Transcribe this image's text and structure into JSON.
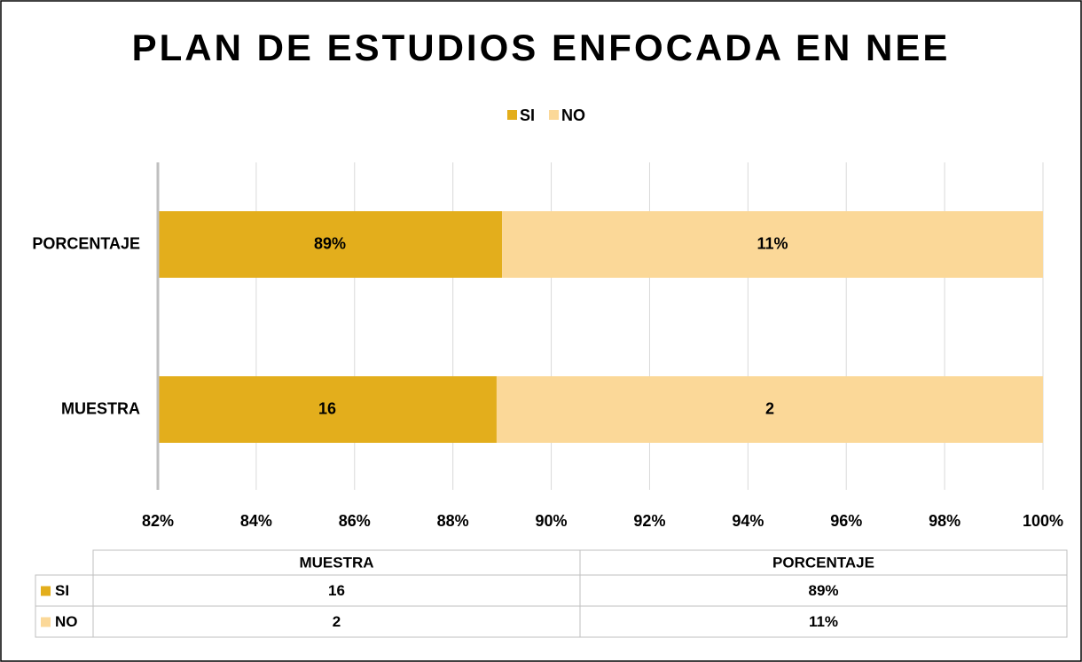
{
  "chart_data": {
    "type": "bar",
    "orientation": "horizontal",
    "stacking": "percent",
    "title": "PLAN DE ESTUDIOS ENFOCADA EN NEE",
    "categories": [
      "MUESTRA",
      "PORCENTAJE"
    ],
    "series": [
      {
        "name": "SI",
        "color": "#e3ae1c",
        "values": [
          16,
          89
        ],
        "value_labels": [
          "16",
          "89%"
        ]
      },
      {
        "name": "NO",
        "color": "#fbd898",
        "values": [
          2,
          11
        ],
        "value_labels": [
          "2",
          "11%"
        ]
      }
    ],
    "xlim": [
      82,
      100
    ],
    "xticks": [
      {
        "value": 82,
        "label": "82%"
      },
      {
        "value": 84,
        "label": "84%"
      },
      {
        "value": 86,
        "label": "86%"
      },
      {
        "value": 88,
        "label": "88%"
      },
      {
        "value": 90,
        "label": "90%"
      },
      {
        "value": 92,
        "label": "92%"
      },
      {
        "value": 94,
        "label": "94%"
      },
      {
        "value": 96,
        "label": "96%"
      },
      {
        "value": 98,
        "label": "98%"
      },
      {
        "value": 100,
        "label": "100%"
      }
    ],
    "grid": true,
    "legend": "top",
    "data_table": true
  }
}
